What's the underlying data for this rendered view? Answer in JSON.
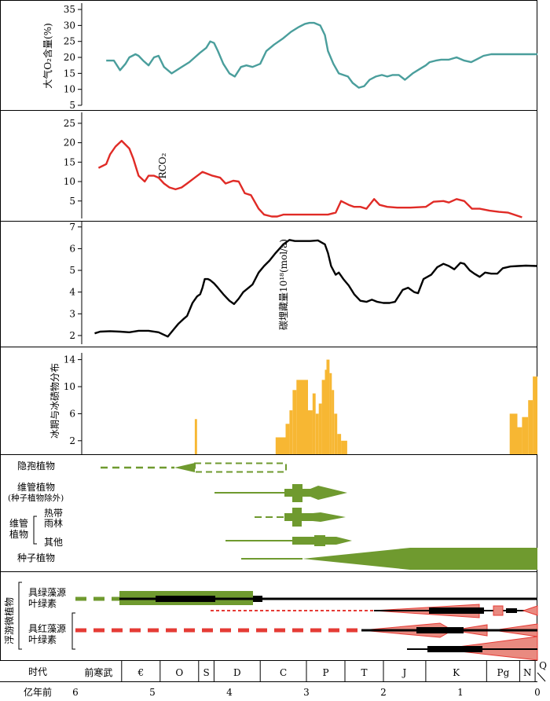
{
  "chart_data": {
    "type": "line",
    "x_axis": {
      "label": "亿年前",
      "range": [
        6,
        0
      ],
      "ticks": [
        "6",
        "5",
        "4",
        "3",
        "2",
        "1",
        "0"
      ]
    },
    "periods": {
      "header": "时代",
      "items": [
        {
          "label": "前寒武",
          "start": 6.0,
          "end": 5.4
        },
        {
          "label": "€",
          "start": 5.4,
          "end": 4.9
        },
        {
          "label": "O",
          "start": 4.9,
          "end": 4.4
        },
        {
          "label": "S",
          "start": 4.4,
          "end": 4.2
        },
        {
          "label": "D",
          "start": 4.2,
          "end": 3.6
        },
        {
          "label": "C",
          "start": 3.6,
          "end": 3.0
        },
        {
          "label": "P",
          "start": 3.0,
          "end": 2.5
        },
        {
          "label": "T",
          "start": 2.5,
          "end": 2.0
        },
        {
          "label": "J",
          "start": 2.0,
          "end": 1.45
        },
        {
          "label": "K",
          "start": 1.45,
          "end": 0.66
        },
        {
          "label": "Pg",
          "start": 0.66,
          "end": 0.23
        },
        {
          "label": "N",
          "start": 0.23,
          "end": 0.03
        },
        {
          "label": "Q",
          "start": 0.03,
          "end": 0.0
        }
      ]
    },
    "panels": [
      {
        "ylabel": "大气O₂含量(%)",
        "yticks": [
          5,
          10,
          15,
          20,
          25,
          30,
          35
        ],
        "ylim": [
          5,
          36
        ],
        "color": "#4a9e9c",
        "x": [
          5.6,
          5.5,
          5.42,
          5.35,
          5.3,
          5.22,
          5.18,
          5.12,
          5.05,
          4.98,
          4.92,
          4.85,
          4.75,
          4.62,
          4.52,
          4.45,
          4.38,
          4.3,
          4.25,
          4.2,
          4.15,
          4.08,
          4.0,
          3.93,
          3.85,
          3.78,
          3.7,
          3.6,
          3.52,
          3.42,
          3.3,
          3.2,
          3.1,
          3.02,
          2.96,
          2.9,
          2.82,
          2.76,
          2.72,
          2.65,
          2.58,
          2.52,
          2.46,
          2.4,
          2.32,
          2.25,
          2.18,
          2.1,
          2.02,
          1.95,
          1.88,
          1.8,
          1.72,
          1.62,
          1.52,
          1.45,
          1.4,
          1.32,
          1.25,
          1.15,
          1.05,
          0.95,
          0.86,
          0.78,
          0.7,
          0.6,
          0.52,
          0.42,
          0.35,
          0.25,
          0.15,
          0.0
        ],
        "y": [
          19,
          19,
          16,
          18,
          20,
          21,
          20.5,
          19,
          17.5,
          20,
          20.5,
          17,
          15,
          17,
          18.5,
          20,
          21.5,
          23,
          25,
          24.5,
          22,
          18,
          15,
          14,
          17,
          17.5,
          17,
          18,
          22,
          24,
          26,
          28,
          29.5,
          30.5,
          30.8,
          30.8,
          30,
          27,
          22,
          18,
          15,
          14.5,
          14,
          12,
          10.5,
          11,
          13,
          14,
          14.5,
          14,
          14.5,
          14.5,
          13,
          15,
          16.5,
          17.5,
          18.5,
          19,
          19.3,
          19.3,
          20,
          19,
          18.5,
          19.5,
          20.5,
          21,
          21,
          21,
          21,
          21,
          21,
          21
        ]
      },
      {
        "ylabel": "RCO₂",
        "yticks": [
          5,
          10,
          15,
          20,
          25
        ],
        "ylim": [
          0.5,
          27
        ],
        "color": "#e02b26",
        "x": [
          5.7,
          5.6,
          5.55,
          5.48,
          5.4,
          5.3,
          5.25,
          5.18,
          5.1,
          5.05,
          4.98,
          4.92,
          4.85,
          4.78,
          4.7,
          4.62,
          4.55,
          4.45,
          4.35,
          4.22,
          4.12,
          4.05,
          3.95,
          3.88,
          3.8,
          3.72,
          3.62,
          3.55,
          3.45,
          3.38,
          3.3,
          3.22,
          3.15,
          3.0,
          2.85,
          2.72,
          2.62,
          2.55,
          2.45,
          2.38,
          2.3,
          2.22,
          2.12,
          2.05,
          1.95,
          1.82,
          1.65,
          1.45,
          1.35,
          1.22,
          1.15,
          1.05,
          0.95,
          0.85,
          0.75,
          0.62,
          0.5,
          0.38,
          0.2
        ],
        "y": [
          13.5,
          14.5,
          17,
          19,
          20.5,
          18.5,
          16,
          11.5,
          10,
          11.5,
          11.5,
          11,
          9.5,
          8.5,
          8,
          8.5,
          9.5,
          11,
          12.5,
          11.5,
          11,
          9.5,
          10.2,
          10,
          7,
          6.5,
          3,
          1.5,
          1,
          1,
          1.5,
          1.5,
          1.5,
          1.5,
          1.5,
          1.5,
          2,
          5,
          4,
          3.5,
          3.5,
          3,
          5.5,
          4,
          3.5,
          3.3,
          3.3,
          3.5,
          4.8,
          5,
          4.6,
          5.5,
          5,
          3,
          3,
          2.5,
          2.2,
          2,
          0.8
        ]
      },
      {
        "ylabel": "碳埋藏量10¹⁸(mol/a)",
        "yticks": [
          2,
          3,
          4,
          5,
          6,
          7
        ],
        "ylim": [
          1.6,
          7.1
        ],
        "color": "#000000",
        "x": [
          5.75,
          5.68,
          5.55,
          5.42,
          5.3,
          5.18,
          5.05,
          4.92,
          4.8,
          4.72,
          4.66,
          4.6,
          4.55,
          4.48,
          4.42,
          4.38,
          4.35,
          4.32,
          4.28,
          4.25,
          4.2,
          4.15,
          4.08,
          4.0,
          3.94,
          3.88,
          3.82,
          3.75,
          3.7,
          3.62,
          3.55,
          3.48,
          3.4,
          3.3,
          3.22,
          3.15,
          3.05,
          2.95,
          2.85,
          2.76,
          2.72,
          2.68,
          2.62,
          2.58,
          2.52,
          2.45,
          2.38,
          2.3,
          2.22,
          2.15,
          2.08,
          2.0,
          1.92,
          1.85,
          1.75,
          1.68,
          1.6,
          1.55,
          1.48,
          1.38,
          1.3,
          1.22,
          1.15,
          1.08,
          1.0,
          0.95,
          0.88,
          0.82,
          0.75,
          0.68,
          0.6,
          0.52,
          0.45,
          0.35,
          0.25,
          0.15,
          0.0
        ],
        "y": [
          2.1,
          2.18,
          2.2,
          2.18,
          2.15,
          2.22,
          2.22,
          2.15,
          1.95,
          2.3,
          2.55,
          2.75,
          2.9,
          3.5,
          3.8,
          3.9,
          4.2,
          4.6,
          4.6,
          4.55,
          4.4,
          4.2,
          3.9,
          3.6,
          3.45,
          3.7,
          4.0,
          4.2,
          4.35,
          4.9,
          5.2,
          5.45,
          5.8,
          6.2,
          6.4,
          6.35,
          6.35,
          6.35,
          6.38,
          6.2,
          5.8,
          5.2,
          4.8,
          4.9,
          4.6,
          4.3,
          3.9,
          3.6,
          3.55,
          3.65,
          3.55,
          3.5,
          3.5,
          3.55,
          4.1,
          4.2,
          4.0,
          3.95,
          4.6,
          4.8,
          5.15,
          5.3,
          5.2,
          5.05,
          5.35,
          5.3,
          5.0,
          4.85,
          4.7,
          4.9,
          4.85,
          4.85,
          5.1,
          5.18,
          5.2,
          5.22,
          5.2
        ]
      }
    ],
    "glaciation": {
      "ylabel": "冰期与冰碛物分布",
      "yticks": [
        2,
        6,
        10,
        14
      ],
      "color": "#f7b733",
      "bars": [
        [
          4.45,
          4.42,
          5.2
        ],
        [
          3.4,
          3.27,
          2.5
        ],
        [
          3.27,
          3.22,
          4.5
        ],
        [
          3.22,
          3.18,
          6.5
        ],
        [
          3.18,
          3.13,
          9.5
        ],
        [
          3.13,
          2.98,
          11
        ],
        [
          2.98,
          2.92,
          6.5
        ],
        [
          2.92,
          2.88,
          9
        ],
        [
          2.88,
          2.84,
          6
        ],
        [
          2.84,
          2.8,
          7.5
        ],
        [
          2.8,
          2.76,
          11
        ],
        [
          2.76,
          2.74,
          12.5
        ],
        [
          2.74,
          2.7,
          14
        ],
        [
          2.7,
          2.67,
          12
        ],
        [
          2.67,
          2.64,
          9.5
        ],
        [
          2.64,
          2.6,
          6
        ],
        [
          2.6,
          2.55,
          3
        ],
        [
          2.55,
          2.47,
          2
        ],
        [
          0.36,
          0.26,
          6
        ],
        [
          0.26,
          0.2,
          4
        ],
        [
          0.2,
          0.12,
          5.5
        ],
        [
          0.12,
          0.06,
          8
        ],
        [
          0.06,
          0.0,
          11.5
        ]
      ]
    },
    "vegetation": {
      "rows": [
        {
          "label": "隐孢植物"
        },
        {
          "label": "维管植物",
          "sublabel": "(种子植物除外)"
        },
        {
          "label": "热带雨林",
          "group": "维管植物"
        },
        {
          "label": "其他",
          "group": "维管植物"
        },
        {
          "label": "种子植物"
        }
      ],
      "color": "#6f9a2f"
    },
    "plankton": {
      "title": "浮游微植物",
      "rows": [
        {
          "label": "具绿藻源叶绿素",
          "color": "#6f9a2f"
        },
        {
          "label": "具红藻源叶绿素",
          "color": "#e53b35"
        }
      ]
    }
  }
}
